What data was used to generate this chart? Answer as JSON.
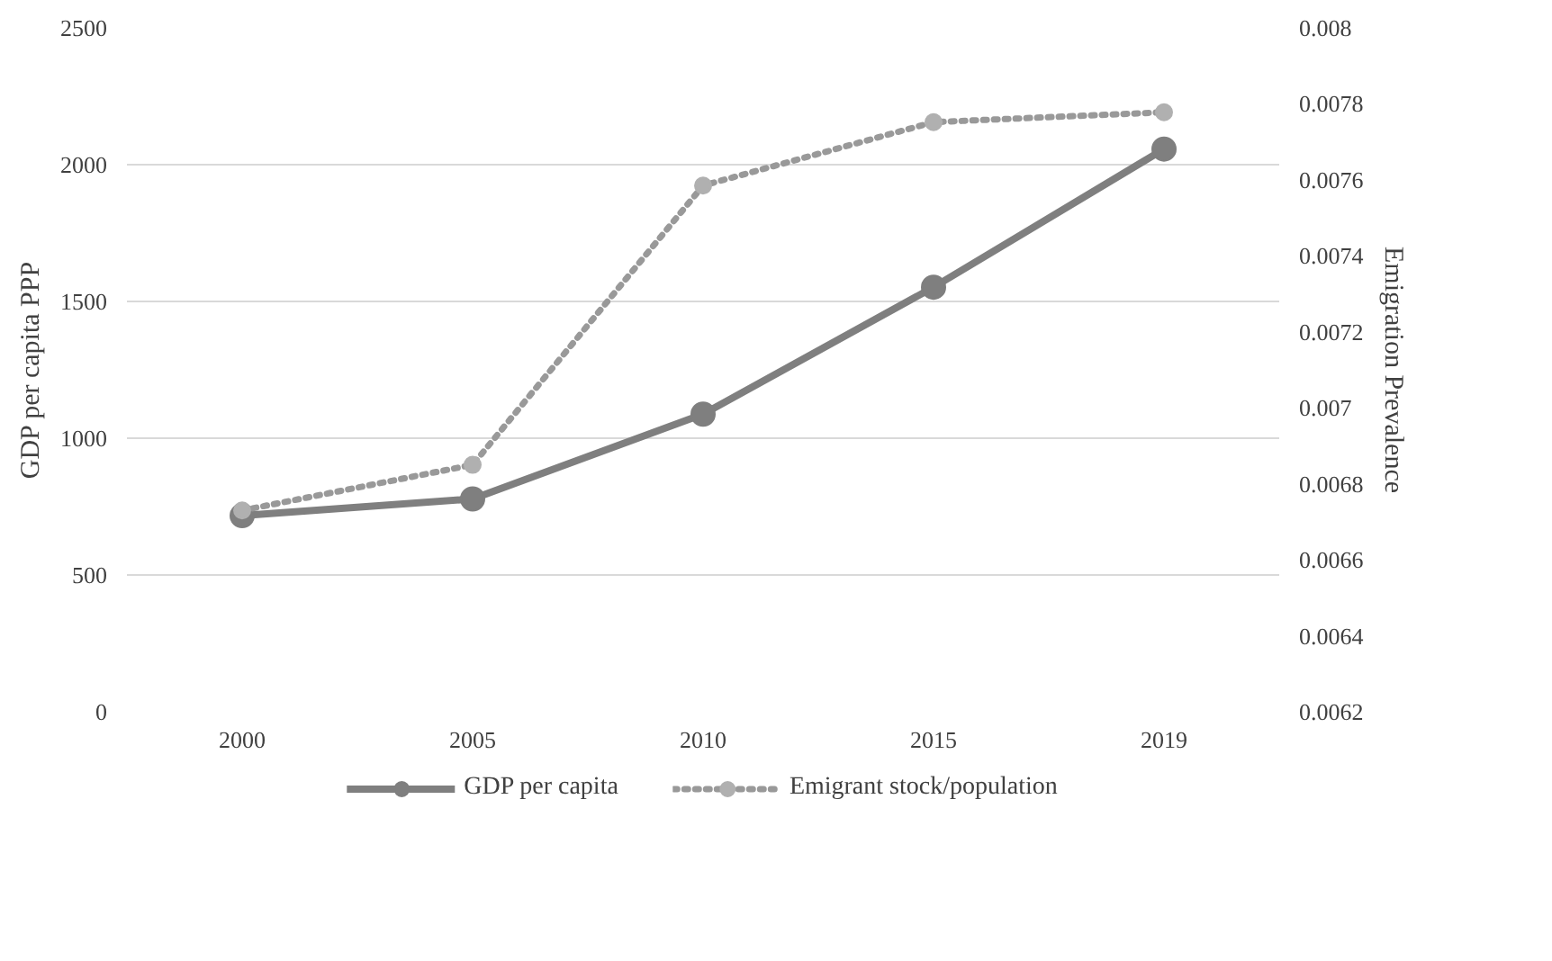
{
  "chart_data": {
    "type": "line",
    "categories": [
      "2000",
      "2005",
      "2010",
      "2015",
      "2019"
    ],
    "ylabel": "GDP per capita PPP",
    "y2label": "Emigration Prevalence",
    "ylim": [
      0,
      2500
    ],
    "yticks": [
      0,
      500,
      1000,
      1500,
      2000,
      2500
    ],
    "y2lim": [
      0.0062,
      0.008
    ],
    "y2ticks": [
      0.0062,
      0.0064,
      0.0066,
      0.0068,
      0.007,
      0.0072,
      0.0074,
      0.0076,
      0.0078,
      0.008
    ],
    "grid": "y",
    "legend": "bottom",
    "marker": "circle",
    "series": [
      {
        "name": "GDP per capita",
        "color": "#7f7f7f",
        "values": [
          717,
          778,
          1088,
          1552,
          2057
        ],
        "line_style": "solid"
      },
      {
        "name": "Emigrant stock/population",
        "color": "#b0b0b0",
        "values": [
          0.00673,
          0.00685,
          0.007585,
          0.007752,
          0.007778
        ],
        "axis": "y2",
        "line_style": "dotted"
      }
    ]
  }
}
